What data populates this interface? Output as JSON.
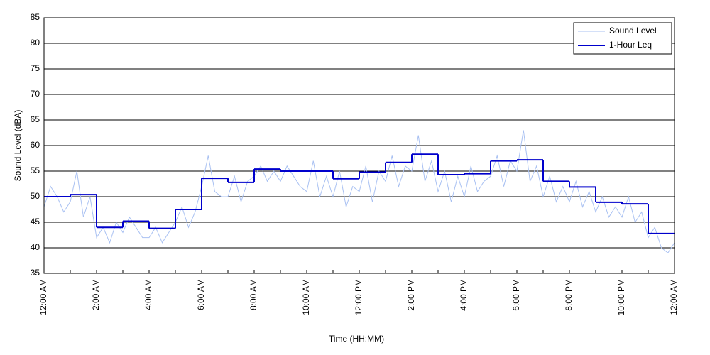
{
  "chart_data": {
    "type": "line",
    "xlabel": "Time (HH:MM)",
    "ylabel": "Sound Level (dBA)",
    "xlim": [
      0,
      24
    ],
    "xticks": [
      {
        "value": 0,
        "label": "12:00 AM"
      },
      {
        "value": 2,
        "label": "2:00 AM"
      },
      {
        "value": 4,
        "label": "4:00 AM"
      },
      {
        "value": 6,
        "label": "6:00 AM"
      },
      {
        "value": 8,
        "label": "8:00 AM"
      },
      {
        "value": 10,
        "label": "10:00 AM"
      },
      {
        "value": 12,
        "label": "12:00 PM"
      },
      {
        "value": 14,
        "label": "2:00 PM"
      },
      {
        "value": 16,
        "label": "4:00 PM"
      },
      {
        "value": 18,
        "label": "6:00 PM"
      },
      {
        "value": 20,
        "label": "8:00 PM"
      },
      {
        "value": 22,
        "label": "10:00 PM"
      },
      {
        "value": 24,
        "label": "12:00 AM"
      }
    ],
    "xminorticks": [
      1,
      3,
      5,
      7,
      9,
      11,
      13,
      15,
      17,
      19,
      21,
      23
    ],
    "ylim": [
      35,
      85
    ],
    "yticks": [
      35,
      40,
      45,
      50,
      55,
      60,
      65,
      70,
      75,
      80,
      85
    ],
    "grid": true,
    "legend": "upper right",
    "series": [
      {
        "name": "Sound Level",
        "color": "#a9c1f2",
        "style": "line",
        "x": [
          0,
          0.25,
          0.5,
          0.75,
          1,
          1.25,
          1.5,
          1.75,
          2,
          2.25,
          2.5,
          2.75,
          3,
          3.25,
          3.5,
          3.75,
          4,
          4.25,
          4.5,
          4.75,
          5,
          5.25,
          5.5,
          5.75,
          6,
          6.25,
          6.5,
          6.75,
          7,
          7.25,
          7.5,
          7.75,
          8,
          8.25,
          8.5,
          8.75,
          9,
          9.25,
          9.5,
          9.75,
          10,
          10.25,
          10.5,
          10.75,
          11,
          11.25,
          11.5,
          11.75,
          12,
          12.25,
          12.5,
          12.75,
          13,
          13.25,
          13.5,
          13.75,
          14,
          14.25,
          14.5,
          14.75,
          15,
          15.25,
          15.5,
          15.75,
          16,
          16.25,
          16.5,
          16.75,
          17,
          17.25,
          17.5,
          17.75,
          18,
          18.25,
          18.5,
          18.75,
          19,
          19.25,
          19.5,
          19.75,
          20,
          20.25,
          20.5,
          20.75,
          21,
          21.25,
          21.5,
          21.75,
          22,
          22.25,
          22.5,
          22.75,
          23,
          23.25,
          23.5,
          23.75,
          24
        ],
        "values": [
          48,
          52,
          50,
          47,
          49,
          55,
          46,
          50,
          42,
          44,
          41,
          45,
          43,
          46,
          44,
          42,
          42,
          44,
          41,
          43,
          45,
          48,
          44,
          47,
          52,
          58,
          51,
          50,
          50,
          54,
          49,
          53,
          54,
          56,
          53,
          55,
          53,
          56,
          54,
          52,
          51,
          57,
          50,
          54,
          50,
          55,
          48,
          52,
          51,
          56,
          49,
          55,
          53,
          58,
          52,
          56,
          55,
          62,
          53,
          57,
          51,
          55,
          49,
          54,
          50,
          56,
          51,
          53,
          54,
          58,
          52,
          57,
          55,
          63,
          53,
          56,
          50,
          54,
          49,
          52,
          49,
          53,
          48,
          51,
          47,
          50,
          46,
          48,
          46,
          50,
          45,
          47,
          42,
          44,
          40,
          39,
          41
        ]
      },
      {
        "name": "1-Hour Leq",
        "color": "#0000cc",
        "style": "step",
        "x": [
          0,
          1,
          2,
          3,
          4,
          5,
          6,
          7,
          8,
          9,
          10,
          11,
          12,
          13,
          14,
          15,
          16,
          17,
          18,
          19,
          20,
          21,
          22,
          23
        ],
        "values": [
          50.0,
          50.4,
          44.0,
          45.2,
          43.8,
          47.5,
          53.6,
          52.8,
          55.4,
          55.0,
          55.0,
          53.5,
          54.8,
          56.7,
          58.3,
          54.3,
          54.5,
          57.0,
          57.2,
          53.0,
          51.9,
          48.9,
          48.6,
          42.8
        ]
      }
    ]
  }
}
